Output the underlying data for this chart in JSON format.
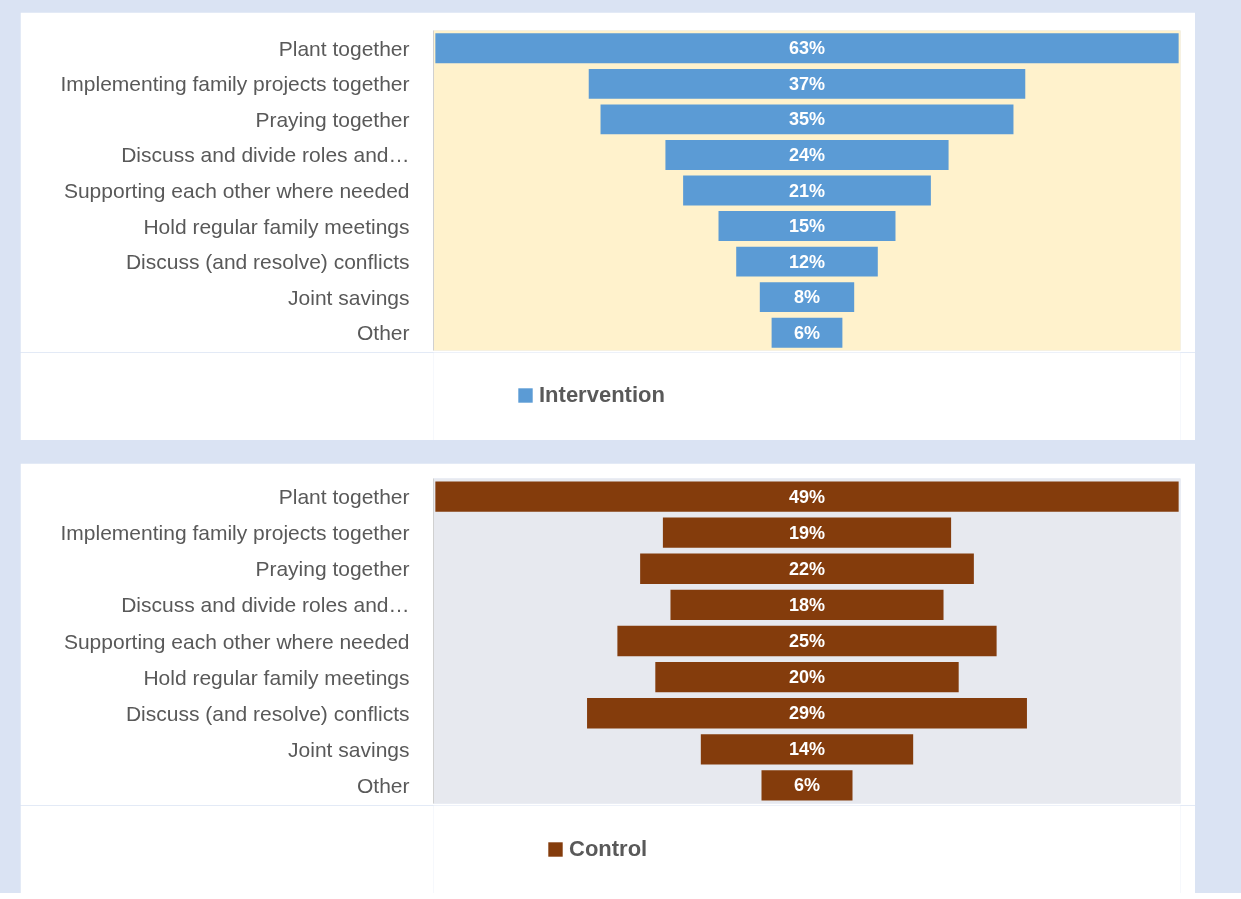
{
  "chart_data": [
    {
      "type": "other",
      "categories": [
        "Plant together",
        "Implementing family projects together",
        "Praying together",
        "Discuss and divide roles and…",
        "Supporting each other where needed",
        "Hold regular family meetings",
        "Discuss (and resolve) conflicts",
        "Joint savings",
        "Other"
      ],
      "series": [
        {
          "name": "Intervention",
          "color": "#5b9bd5",
          "values": [
            63,
            37,
            35,
            24,
            21,
            15,
            12,
            8,
            6
          ],
          "value_labels": [
            "63%",
            "37%",
            "35%",
            "24%",
            "21%",
            "15%",
            "12%",
            "8%",
            "6%"
          ]
        }
      ],
      "legend": "bottom"
    },
    {
      "type": "other",
      "categories": [
        "Plant together",
        "Implementing family projects together",
        "Praying together",
        "Discuss and divide roles and…",
        "Supporting each other where needed",
        "Hold regular family meetings",
        "Discuss (and resolve) conflicts",
        "Joint savings",
        "Other"
      ],
      "series": [
        {
          "name": "Control",
          "color": "#843c0c",
          "values": [
            49,
            19,
            22,
            18,
            25,
            20,
            29,
            14,
            6
          ],
          "value_labels": [
            "49%",
            "19%",
            "22%",
            "18%",
            "25%",
            "20%",
            "29%",
            "14%",
            "6%"
          ]
        }
      ],
      "legend": "bottom"
    }
  ]
}
